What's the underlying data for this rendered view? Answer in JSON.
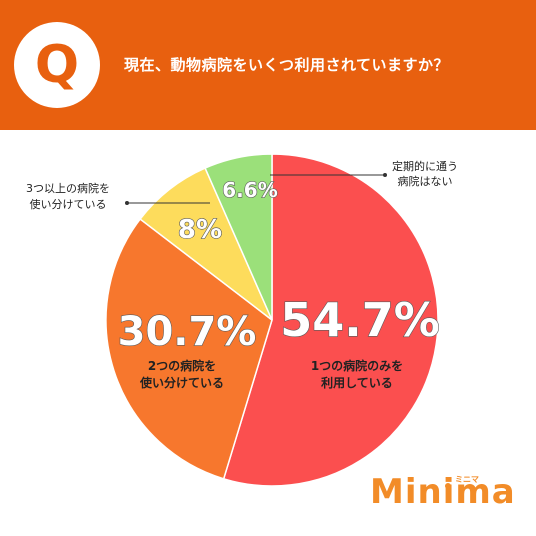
{
  "header": {
    "badge": "Q",
    "question": "現在、動物病院をいくつ利用されていますか？"
  },
  "chart_data": {
    "type": "pie",
    "slices": [
      {
        "value": 54.7,
        "value_label": "54.7%",
        "label_lines": [
          "1つの病院のみを",
          "利用している"
        ],
        "color": "#fb4f4f"
      },
      {
        "value": 30.7,
        "value_label": "30.7%",
        "label_lines": [
          "2つの病院を",
          "使い分けている"
        ],
        "color": "#f7772d"
      },
      {
        "value": 8,
        "value_label": "8%",
        "label_lines": [
          "3つ以上の病院を",
          "使い分けている"
        ],
        "color": "#fddc5c"
      },
      {
        "value": 6.6,
        "value_label": "6.6%",
        "label_lines": [
          "定期的に通う",
          "病院はない"
        ],
        "color": "#9be07a"
      }
    ]
  },
  "logo": {
    "text": "Minima",
    "kana": "ミニマ"
  }
}
